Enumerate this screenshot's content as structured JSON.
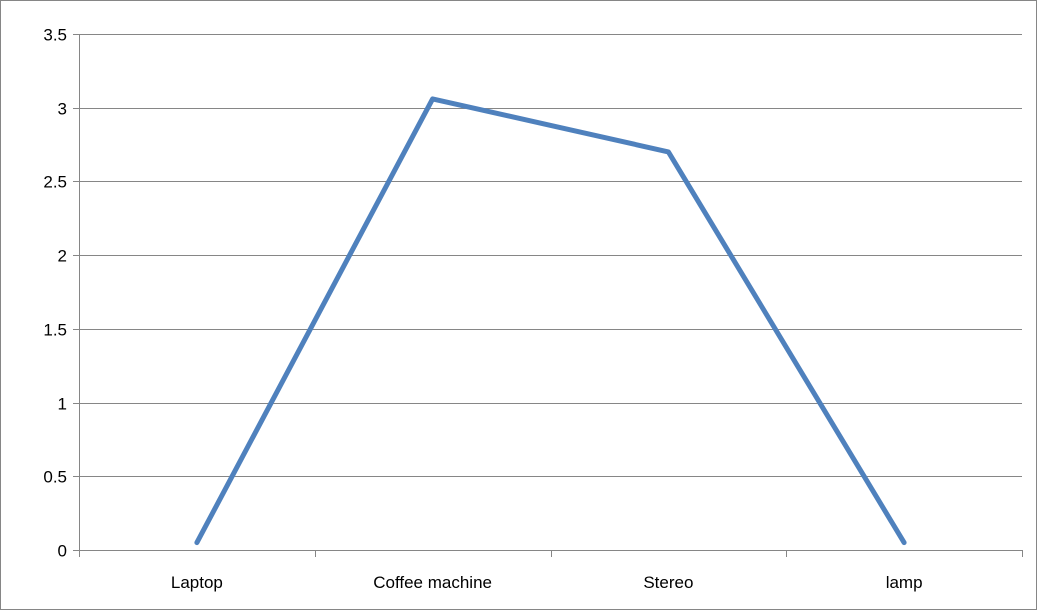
{
  "chart_data": {
    "type": "line",
    "categories": [
      "Laptop",
      "Coffee machine",
      "Stereo",
      "lamp"
    ],
    "series": [
      {
        "values": [
          0.05,
          3.06,
          2.7,
          0.05
        ]
      }
    ],
    "y_ticks": [
      "0",
      "0.5",
      "1",
      "1.5",
      "2",
      "2.5",
      "3",
      "3.5"
    ],
    "ylim": [
      0,
      3.5
    ],
    "grid": true,
    "legend": "none",
    "line_color": "#4f81bd",
    "grid_color": "#868686"
  }
}
